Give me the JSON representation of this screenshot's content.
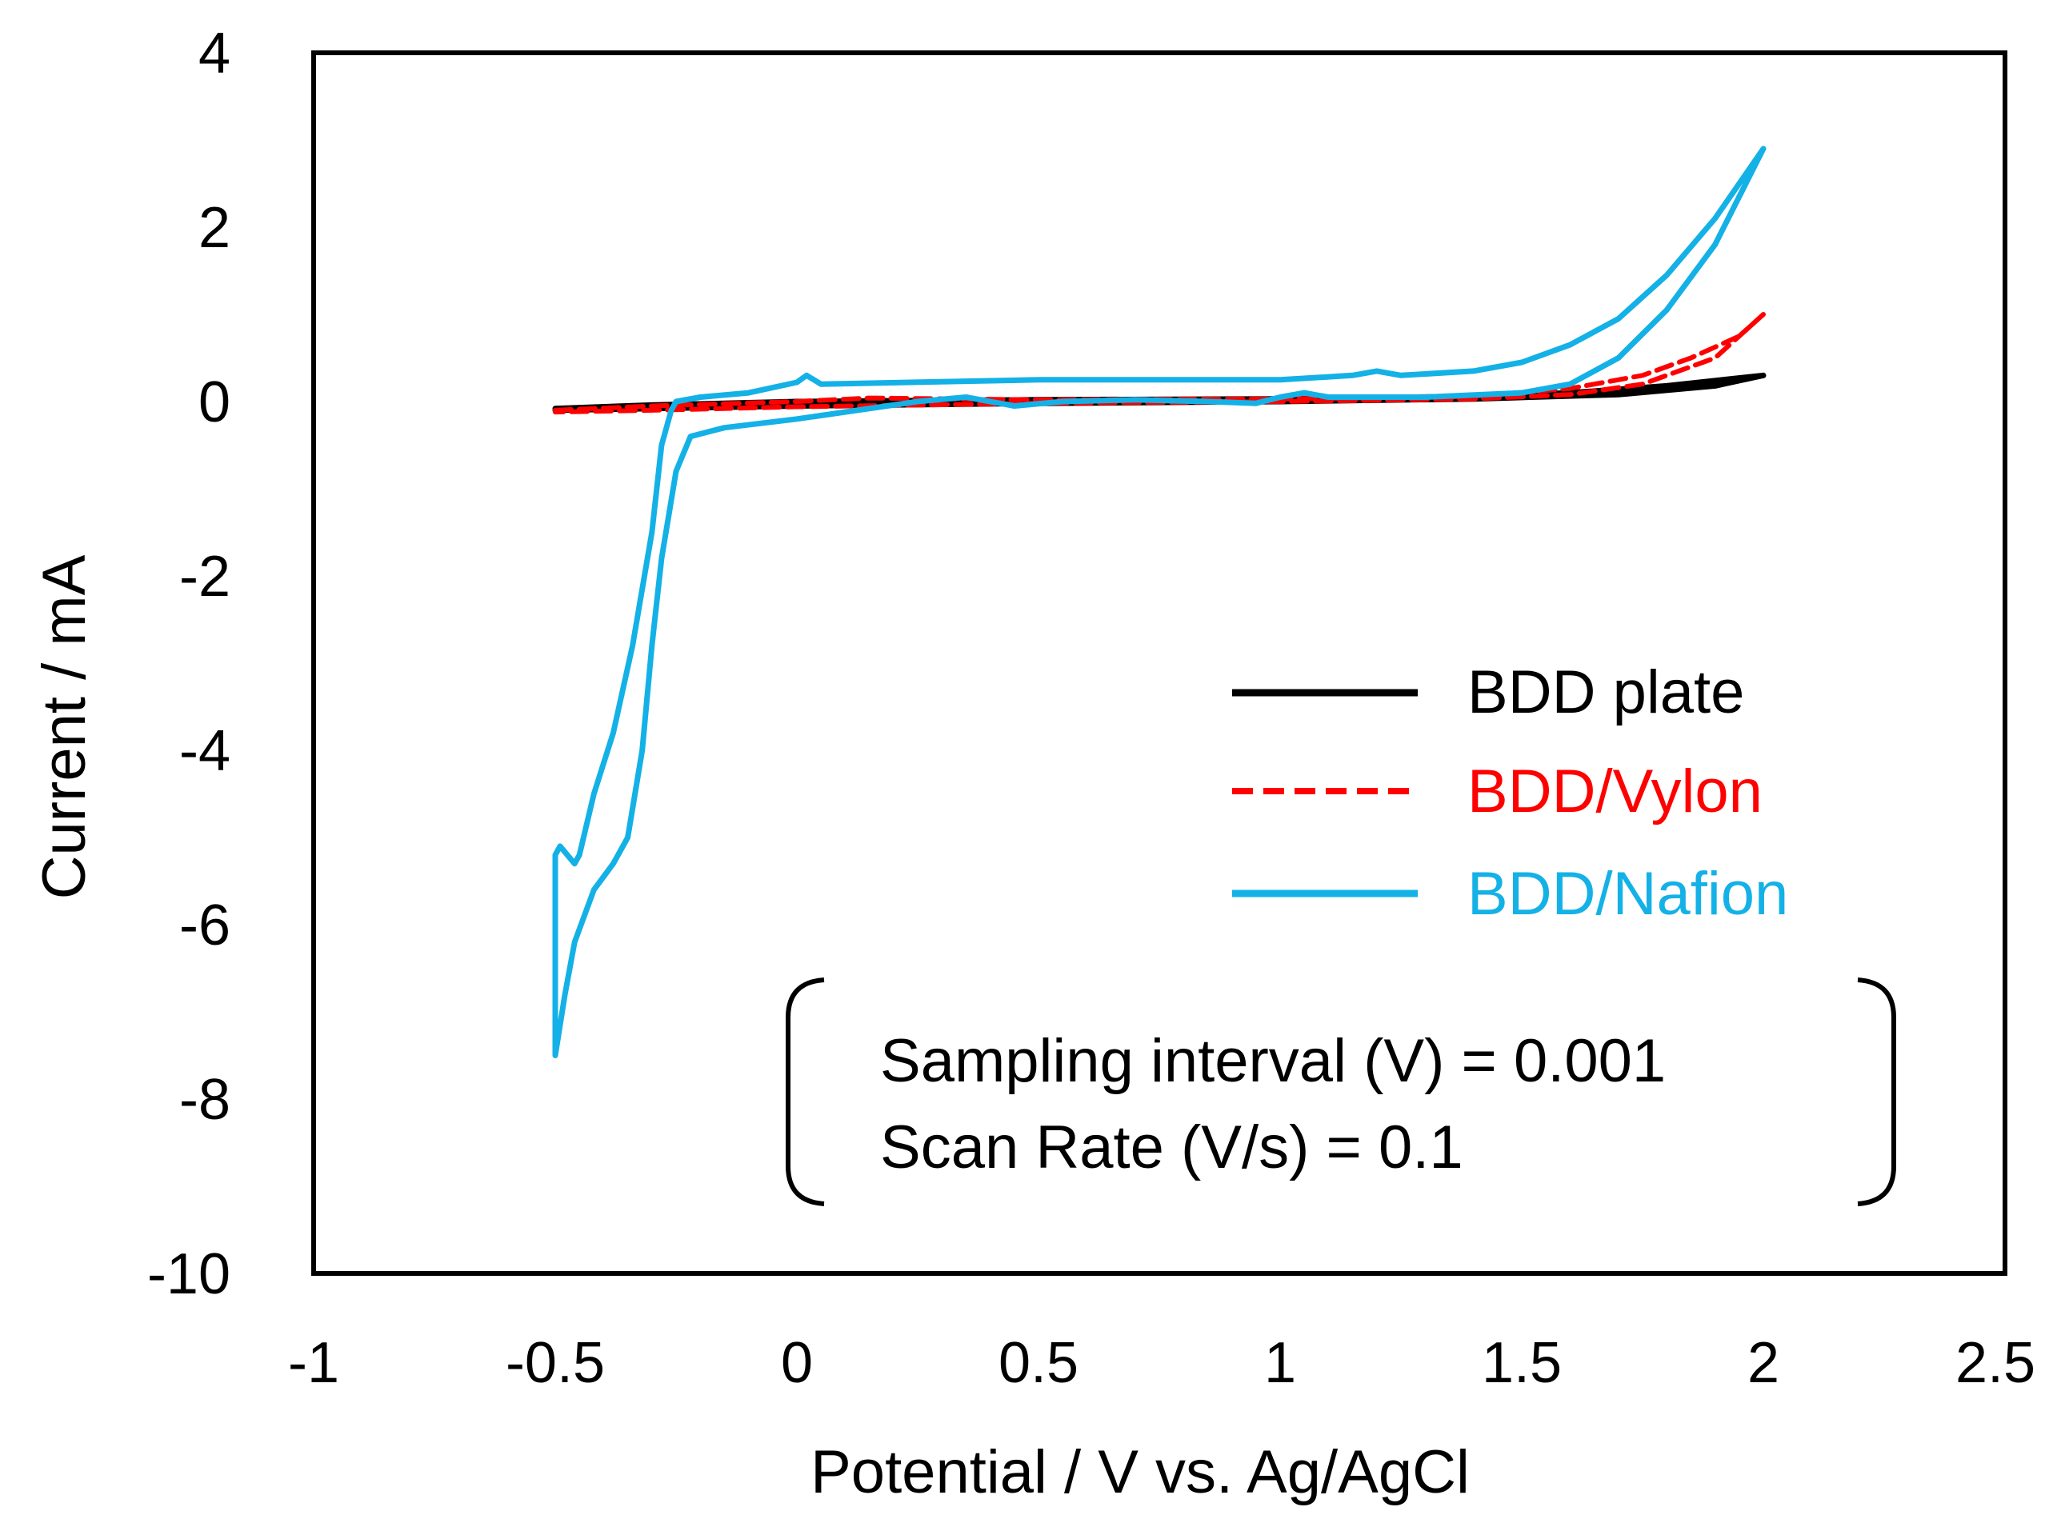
{
  "chart_data": {
    "type": "line",
    "xlabel": "Potential / V vs. Ag/AgCl",
    "ylabel": "Current / mA",
    "xlim": [
      -1,
      2.5
    ],
    "ylim": [
      -10,
      4
    ],
    "x_ticks": [
      -1,
      -0.5,
      0,
      0.5,
      1,
      1.5,
      2,
      2.5
    ],
    "x_tick_labels": [
      "-1",
      "-0.5",
      "0",
      "0.5",
      "1",
      "1.5",
      "2",
      "2.5"
    ],
    "y_ticks": [
      -10,
      -8,
      -6,
      -4,
      -2,
      0,
      2,
      4
    ],
    "y_tick_labels": [
      "-10",
      "-8",
      "-6",
      "-4",
      "-2",
      "0",
      "2",
      "4"
    ],
    "grid": false,
    "legend_position": "right-middle",
    "annotation": {
      "lines": [
        "Sampling interval (V) = 0.001",
        "Scan Rate (V/s) = 0.1"
      ]
    },
    "series": [
      {
        "name": "BDD plate",
        "color": "#000000",
        "style": "solid",
        "x": [
          -0.5,
          -0.3,
          0,
          0.5,
          1.0,
          1.4,
          1.6,
          1.8,
          1.9,
          2.0,
          1.9,
          1.7,
          1.4,
          1.0,
          0.5,
          0,
          -0.3,
          -0.5
        ],
        "y": [
          -0.08,
          -0.04,
          0.0,
          0.02,
          0.03,
          0.06,
          0.1,
          0.18,
          0.24,
          0.3,
          0.18,
          0.08,
          0.03,
          0.0,
          -0.02,
          -0.05,
          -0.08,
          -0.1
        ]
      },
      {
        "name": "BDD/Vylon",
        "color": "#ff0000",
        "style": "dashed",
        "x": [
          -0.5,
          -0.3,
          0,
          0.15,
          0.5,
          1.0,
          1.4,
          1.6,
          1.75,
          1.85,
          1.95,
          2.0,
          1.9,
          1.75,
          1.6,
          1.4,
          1.0,
          0.5,
          0,
          -0.3,
          -0.5
        ],
        "y": [
          -0.1,
          -0.05,
          0.0,
          0.04,
          0.02,
          0.03,
          0.06,
          0.15,
          0.3,
          0.5,
          0.75,
          1.0,
          0.5,
          0.2,
          0.08,
          0.03,
          0.0,
          -0.02,
          -0.06,
          -0.1,
          -0.12
        ]
      },
      {
        "name": "BDD/Nafion",
        "color": "#14b1e7",
        "style": "solid",
        "x": [
          -0.25,
          -0.2,
          -0.1,
          0.0,
          0.02,
          0.05,
          0.5,
          1.0,
          1.15,
          1.2,
          1.25,
          1.4,
          1.5,
          1.6,
          1.7,
          1.8,
          1.9,
          2.0,
          1.9,
          1.8,
          1.7,
          1.6,
          1.5,
          1.3,
          1.1,
          1.05,
          1.0,
          0.95,
          0.85,
          0.7,
          0.55,
          0.45,
          0.38,
          0.35,
          0.25,
          0.0,
          -0.15,
          -0.22,
          -0.25,
          -0.28,
          -0.3,
          -0.32,
          -0.35,
          -0.38,
          -0.42,
          -0.46,
          -0.48,
          -0.5,
          -0.5,
          -0.49,
          -0.46,
          -0.45,
          -0.42,
          -0.38,
          -0.34,
          -0.3,
          -0.28,
          -0.26,
          -0.25
        ],
        "y": [
          0.0,
          0.05,
          0.1,
          0.22,
          0.3,
          0.2,
          0.25,
          0.25,
          0.3,
          0.35,
          0.3,
          0.35,
          0.45,
          0.65,
          0.95,
          1.45,
          2.1,
          2.9,
          1.8,
          1.05,
          0.5,
          0.2,
          0.1,
          0.05,
          0.05,
          0.1,
          0.05,
          -0.02,
          0.0,
          0.02,
          0.0,
          -0.05,
          0.02,
          0.05,
          0.0,
          -0.2,
          -0.3,
          -0.4,
          -0.8,
          -1.8,
          -2.8,
          -4.0,
          -5.0,
          -5.3,
          -5.6,
          -6.2,
          -6.8,
          -7.5,
          -5.2,
          -5.1,
          -5.3,
          -5.2,
          -4.5,
          -3.8,
          -2.8,
          -1.5,
          -0.5,
          -0.1,
          0.0
        ]
      }
    ]
  }
}
